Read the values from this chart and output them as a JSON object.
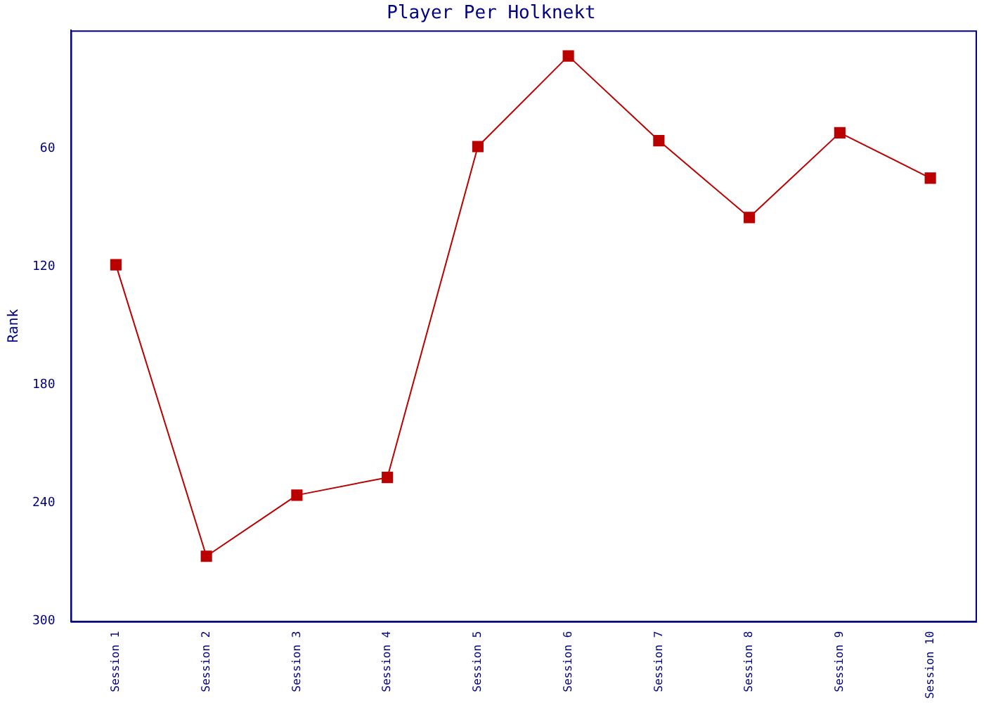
{
  "chart_data": {
    "type": "line",
    "title": "Player Per Holknekt",
    "ylabel": "Rank",
    "categories": [
      "Session 1",
      "Session 2",
      "Session 3",
      "Session 4",
      "Session 5",
      "Session 6",
      "Session 7",
      "Session 8",
      "Session 9",
      "Session 10"
    ],
    "series": [
      {
        "color": "#bb0000",
        "values": [
          119,
          267,
          236,
          227,
          59,
          13,
          56,
          95,
          52,
          75
        ]
      }
    ],
    "ylim": [
      300,
      0
    ],
    "yticks": [
      60,
      120,
      180,
      240,
      300
    ],
    "grid": false,
    "legend": false,
    "marker": "square",
    "line_style": "solid"
  }
}
